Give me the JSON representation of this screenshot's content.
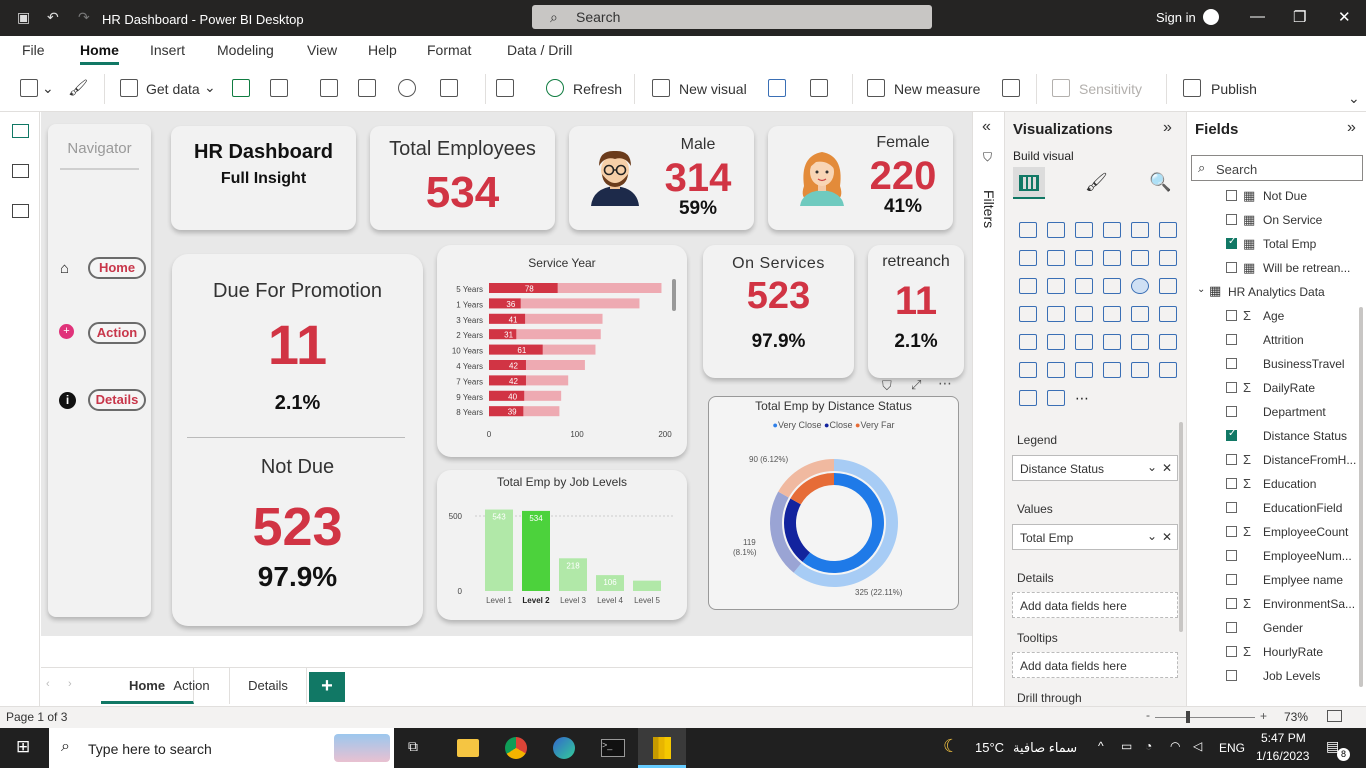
{
  "app": {
    "title": "HR Dashboard - Power BI Desktop",
    "search_placeholder": "Search",
    "sign_in": "Sign in"
  },
  "menu": [
    "File",
    "Home",
    "Insert",
    "Modeling",
    "View",
    "Help",
    "Format",
    "Data / Drill"
  ],
  "ribbon": {
    "get_data": "Get data",
    "refresh": "Refresh",
    "new_visual": "New visual",
    "new_measure": "New measure",
    "sensitivity": "Sensitivity",
    "publish": "Publish"
  },
  "navigator": {
    "title": "Navigator",
    "items": [
      {
        "label": "Home",
        "icon": "home-icon"
      },
      {
        "label": "Action",
        "icon": "plus-circle-icon"
      },
      {
        "label": "Details",
        "icon": "info-icon"
      }
    ]
  },
  "header_card": {
    "title": "HR Dashboard",
    "subtitle": "Full Insight"
  },
  "total_employees": {
    "label": "Total Employees",
    "value": "534"
  },
  "male": {
    "label": "Male",
    "value": "314",
    "pct": "59%"
  },
  "female": {
    "label": "Female",
    "value": "220",
    "pct": "41%"
  },
  "promotion": {
    "due_label": "Due For Promotion",
    "due_value": "11",
    "due_pct": "2.1%",
    "not_due_label": "Not Due",
    "not_due_value": "523",
    "not_due_pct": "97.9%"
  },
  "on_services": {
    "label": "On Services",
    "value": "523",
    "pct": "97.9%"
  },
  "retrench": {
    "label": "retreanch",
    "value": "11",
    "pct": "2.1%"
  },
  "chart_data": [
    {
      "type": "bar",
      "orientation": "horizontal",
      "title": "Service Year",
      "categories": [
        "5 Years",
        "1 Years",
        "3 Years",
        "2 Years",
        "10 Years",
        "4 Years",
        "7 Years",
        "9 Years",
        "8 Years"
      ],
      "values": [
        78,
        36,
        41,
        31,
        61,
        42,
        42,
        40,
        39
      ],
      "totals": [
        196,
        171,
        129,
        127,
        121,
        109,
        90,
        82,
        80
      ],
      "xticks": [
        "0",
        "100",
        "200"
      ],
      "xlim": [
        0,
        200
      ]
    },
    {
      "type": "bar",
      "title": "Total Emp by Job Levels",
      "categories": [
        "Level 1",
        "Level 2",
        "Level 3",
        "Level 4",
        "Level 5"
      ],
      "values": [
        543,
        534,
        218,
        106,
        69
      ],
      "value_labels": [
        "543",
        "534",
        "218",
        "106",
        ""
      ],
      "highlight_index": 1,
      "yticks": [
        "500",
        "0"
      ],
      "ylim": [
        0,
        600
      ]
    },
    {
      "type": "pie",
      "donut": true,
      "title": "Total Emp by Distance Status",
      "legend": [
        {
          "name": "Very Close",
          "color": "#2f7fe8"
        },
        {
          "name": "Close",
          "color": "#12239e"
        },
        {
          "name": "Very Far",
          "color": "#e66c37"
        }
      ],
      "outer": [
        {
          "value": 325,
          "color": "#a7ccf5",
          "label": "325 (22.11%)"
        },
        {
          "value": 119,
          "color": "#9aa4d4",
          "label": "119 (8.1%)"
        },
        {
          "value": 90,
          "color": "#f0b9a0",
          "label": "90 (6.12%)"
        }
      ],
      "inner": [
        {
          "value": 325,
          "color": "#1f7ae8"
        },
        {
          "value": 119,
          "color": "#12239e"
        },
        {
          "value": 90,
          "color": "#e66c37"
        }
      ]
    }
  ],
  "page_tabs": [
    "Home",
    "Action",
    "Details"
  ],
  "status": {
    "page": "Page 1 of 3",
    "zoom": "73%"
  },
  "filters_label": "Filters",
  "visualizations": {
    "title": "Visualizations",
    "build_visual": "Build visual",
    "legend_label": "Legend",
    "legend_field": "Distance Status",
    "values_label": "Values",
    "values_field": "Total Emp",
    "details_label": "Details",
    "details_placeholder": "Add data fields here",
    "tooltips_label": "Tooltips",
    "tooltips_placeholder": "Add data fields here",
    "drill_label": "Drill through"
  },
  "fields": {
    "title": "Fields",
    "search_placeholder": "Search",
    "table_name": "HR Analytics Data",
    "top_items": [
      {
        "name": "Not Due",
        "checked": false
      },
      {
        "name": "On Service",
        "checked": false
      },
      {
        "name": "Total Emp",
        "checked": true
      },
      {
        "name": "Will be retrean...",
        "checked": false
      }
    ],
    "items": [
      {
        "name": "Age",
        "sigma": true,
        "checked": false
      },
      {
        "name": "Attrition",
        "sigma": false,
        "checked": false
      },
      {
        "name": "BusinessTravel",
        "sigma": false,
        "checked": false
      },
      {
        "name": "DailyRate",
        "sigma": true,
        "checked": false
      },
      {
        "name": "Department",
        "sigma": false,
        "checked": false
      },
      {
        "name": "Distance Status",
        "sigma": false,
        "checked": true
      },
      {
        "name": "DistanceFromH...",
        "sigma": true,
        "checked": false
      },
      {
        "name": "Education",
        "sigma": true,
        "checked": false
      },
      {
        "name": "EducationField",
        "sigma": false,
        "checked": false
      },
      {
        "name": "EmployeeCount",
        "sigma": true,
        "checked": false
      },
      {
        "name": "EmployeeNum...",
        "sigma": false,
        "checked": false
      },
      {
        "name": "Emplyee name",
        "sigma": false,
        "checked": false
      },
      {
        "name": "EnvironmentSa...",
        "sigma": true,
        "checked": false
      },
      {
        "name": "Gender",
        "sigma": false,
        "checked": false
      },
      {
        "name": "HourlyRate",
        "sigma": true,
        "checked": false
      },
      {
        "name": "Job Levels",
        "sigma": false,
        "checked": false
      }
    ]
  },
  "taskbar": {
    "search_placeholder": "Type here to search",
    "weather": "15°C",
    "weather_desc": "سماء صافية",
    "lang": "ENG",
    "time": "5:47 PM",
    "date": "1/16/2023",
    "notifications": "8"
  }
}
